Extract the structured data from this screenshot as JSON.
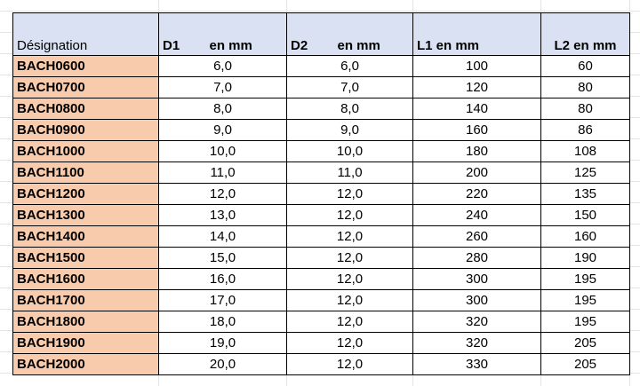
{
  "table": {
    "header": [
      "Désignation",
      "D1        en mm",
      "D2        en mm",
      "L1 en mm",
      "L2 en mm"
    ],
    "rows": [
      [
        "BACH0600",
        "6,0",
        "6,0",
        "100",
        "60"
      ],
      [
        "BACH0700",
        "7,0",
        "7,0",
        "120",
        "80"
      ],
      [
        "BACH0800",
        "8,0",
        "8,0",
        "140",
        "80"
      ],
      [
        "BACH0900",
        "9,0",
        "9,0",
        "160",
        "86"
      ],
      [
        "BACH1000",
        "10,0",
        "10,0",
        "180",
        "108"
      ],
      [
        "BACH1100",
        "11,0",
        "11,0",
        "200",
        "125"
      ],
      [
        "BACH1200",
        "12,0",
        "12,0",
        "220",
        "135"
      ],
      [
        "BACH1300",
        "13,0",
        "12,0",
        "240",
        "150"
      ],
      [
        "BACH1400",
        "14,0",
        "12,0",
        "260",
        "160"
      ],
      [
        "BACH1500",
        "15,0",
        "12,0",
        "280",
        "190"
      ],
      [
        "BACH1600",
        "16,0",
        "12,0",
        "300",
        "195"
      ],
      [
        "BACH1700",
        "17,0",
        "12,0",
        "300",
        "195"
      ],
      [
        "BACH1800",
        "18,0",
        "12,0",
        "320",
        "195"
      ],
      [
        "BACH1900",
        "19,0",
        "12,0",
        "320",
        "205"
      ],
      [
        "BACH2000",
        "20,0",
        "12,0",
        "330",
        "205"
      ]
    ]
  }
}
